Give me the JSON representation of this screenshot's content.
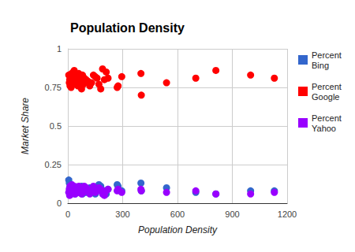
{
  "chart_data": {
    "type": "scatter",
    "title": "Population Density",
    "x_label": "Population Density",
    "y_label": "Market Share",
    "x": [
      5,
      8,
      10,
      12,
      15,
      18,
      20,
      22,
      25,
      28,
      30,
      35,
      38,
      40,
      45,
      50,
      55,
      60,
      65,
      70,
      75,
      80,
      85,
      90,
      100,
      110,
      120,
      130,
      140,
      150,
      160,
      170,
      180,
      190,
      200,
      210,
      220,
      270,
      275,
      295,
      400,
      402,
      540,
      700,
      810,
      1000,
      1130
    ],
    "series": [
      {
        "name": "Percent Bing",
        "color": "#3366cc",
        "values": [
          0.15,
          0.13,
          0.1,
          0.09,
          0.12,
          0.08,
          0.07,
          0.1,
          0.09,
          0.11,
          0.08,
          0.07,
          0.1,
          0.06,
          0.09,
          0.08,
          0.1,
          0.07,
          0.09,
          0.08,
          0.11,
          0.06,
          0.09,
          0.08,
          0.07,
          0.09,
          0.1,
          0.08,
          0.07,
          0.06,
          0.09,
          0.12,
          0.11,
          0.07,
          0.08,
          0.06,
          0.09,
          0.12,
          0.11,
          0.08,
          0.13,
          0.08,
          0.1,
          0.07,
          0.06,
          0.08,
          0.08
        ]
      },
      {
        "name": "Percent Google",
        "color": "#ff0000",
        "values": [
          0.83,
          0.78,
          0.8,
          0.76,
          0.82,
          0.75,
          0.84,
          0.79,
          0.81,
          0.77,
          0.85,
          0.86,
          0.8,
          0.83,
          0.78,
          0.82,
          0.76,
          0.84,
          0.8,
          0.79,
          0.74,
          0.83,
          0.77,
          0.81,
          0.8,
          0.79,
          0.76,
          0.78,
          0.83,
          0.82,
          0.81,
          0.77,
          0.74,
          0.87,
          0.8,
          0.85,
          0.81,
          0.75,
          0.76,
          0.82,
          0.84,
          0.7,
          0.78,
          0.81,
          0.86,
          0.83,
          0.81
        ]
      },
      {
        "name": "Percent Yahoo",
        "color": "#9900ff",
        "values": [
          0.07,
          0.09,
          0.05,
          0.11,
          0.08,
          0.1,
          0.06,
          0.12,
          0.09,
          0.07,
          0.1,
          0.11,
          0.08,
          0.06,
          0.1,
          0.09,
          0.07,
          0.11,
          0.08,
          0.1,
          0.06,
          0.09,
          0.07,
          0.11,
          0.1,
          0.08,
          0.06,
          0.09,
          0.11,
          0.07,
          0.08,
          0.1,
          0.09,
          0.06,
          0.05,
          0.08,
          0.09,
          0.08,
          0.09,
          0.07,
          0.09,
          0.08,
          0.07,
          0.08,
          0.06,
          0.06,
          0.07
        ]
      }
    ],
    "xlim": [
      0,
      1200
    ],
    "xticks": [
      0,
      300,
      600,
      900,
      1200
    ],
    "ylim": [
      0,
      1
    ],
    "yticks": [
      0,
      0.25,
      0.5,
      0.75,
      1
    ],
    "grid": true,
    "legend": "right",
    "marker": "circle"
  }
}
